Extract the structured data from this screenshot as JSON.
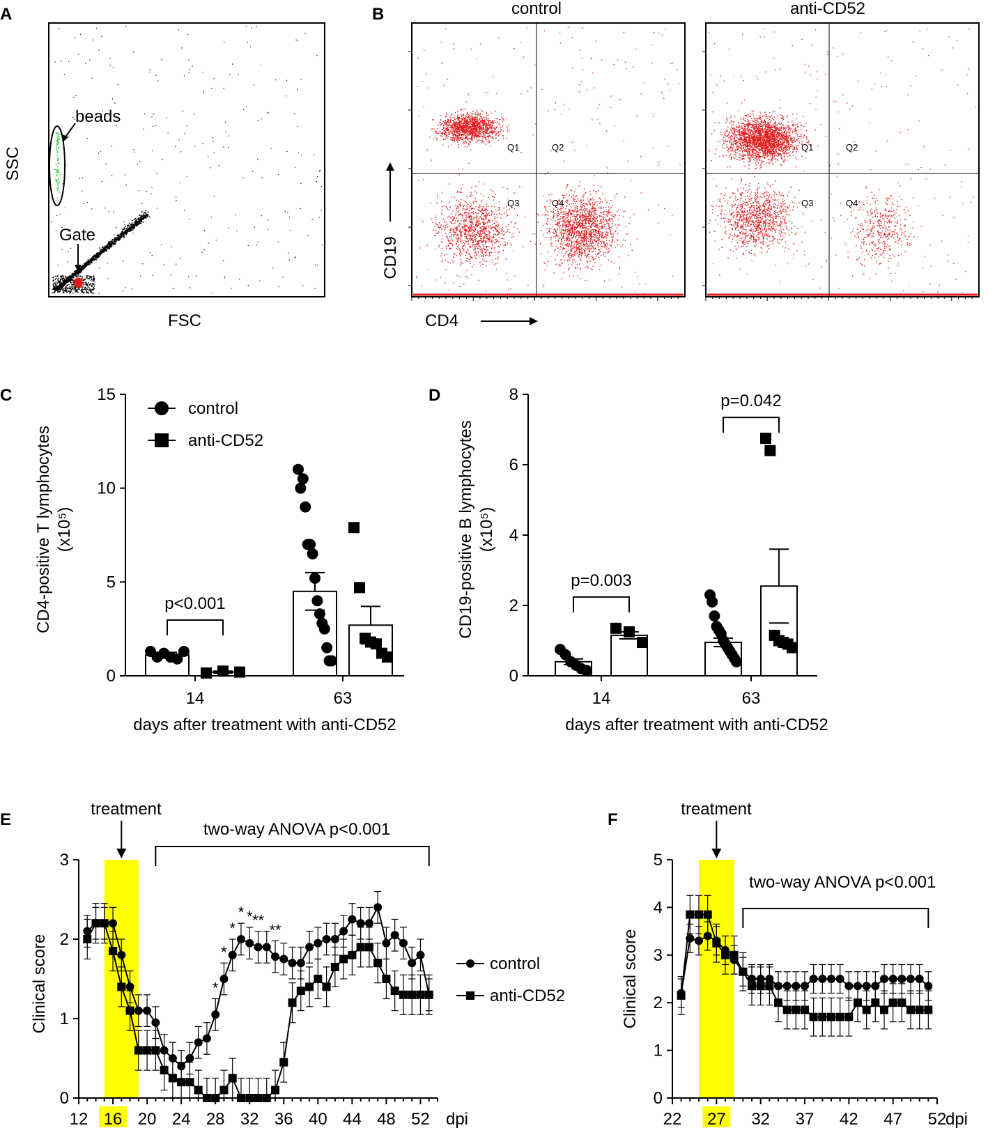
{
  "colors": {
    "ink": "#000000",
    "highlight": "#ffff00",
    "dots": "#e0191c",
    "beads": "#2ecc40"
  },
  "panels": {
    "a": {
      "letter": "A",
      "xlabel": "FSC",
      "ylabel": "SSC",
      "beads_label": "beads",
      "gate_label": "Gate"
    },
    "b": {
      "letter": "B",
      "title_left": "control",
      "title_right": "anti-CD52",
      "xlabel": "CD4",
      "ylabel": "CD19",
      "quadrants": [
        "Q1",
        "Q2",
        "Q3",
        "Q4"
      ]
    },
    "c": {
      "letter": "C"
    },
    "d": {
      "letter": "D"
    },
    "e": {
      "letter": "E"
    },
    "f": {
      "letter": "F"
    }
  },
  "chart_data": [
    {
      "id": "C",
      "type": "bar",
      "ylabel": "CD4-positive T lymphocytes",
      "ylabel_unit": "(x10⁵)",
      "xlabel": "days after treatment with anti-CD52",
      "categories": [
        "14",
        "63"
      ],
      "ylim": [
        0,
        15
      ],
      "yticks": [
        0,
        5,
        10,
        15
      ],
      "legend": [
        "control",
        "anti-CD52"
      ],
      "series": [
        {
          "name": "control",
          "marker": "circle",
          "means": [
            1.1,
            4.5
          ],
          "sem": [
            0.15,
            1.0
          ],
          "points": [
            [
              1.3,
              1.0,
              1.2,
              1.0,
              0.9,
              1.3
            ],
            [
              11.0,
              10.0,
              10.5,
              9.0,
              7.0,
              7.0,
              6.5,
              5.2,
              4.0,
              3.3,
              2.8,
              2.5,
              1.5,
              0.8,
              0.8
            ]
          ]
        },
        {
          "name": "anti-CD52",
          "marker": "square",
          "means": [
            0.2,
            2.7
          ],
          "sem": [
            0.05,
            1.0
          ],
          "points": [
            [
              0.15,
              0.25,
              0.2
            ],
            [
              7.9,
              4.7,
              2.0,
              1.8,
              1.7,
              1.2,
              1.0
            ]
          ]
        }
      ],
      "annotations": [
        {
          "text": "p<0.001",
          "category": "14"
        }
      ]
    },
    {
      "id": "D",
      "type": "bar",
      "ylabel": "CD19-positive B lymphocytes",
      "ylabel_unit": "(x10⁵)",
      "xlabel": "days after treatment with anti-CD52",
      "categories": [
        "14",
        "63"
      ],
      "ylim": [
        0,
        8
      ],
      "yticks": [
        0,
        2,
        4,
        6,
        8
      ],
      "series": [
        {
          "name": "control",
          "marker": "circle",
          "means": [
            0.4,
            0.95
          ],
          "sem": [
            0.08,
            0.12
          ],
          "points": [
            [
              0.75,
              0.6,
              0.4,
              0.3,
              0.2,
              0.15
            ],
            [
              2.3,
              2.1,
              1.7,
              1.4,
              1.3,
              1.2,
              1.0,
              0.9,
              0.8,
              0.7,
              0.6,
              0.5,
              0.4
            ]
          ]
        },
        {
          "name": "anti-CD52",
          "marker": "square",
          "means": [
            1.15,
            2.55
          ],
          "sem": [
            0.1,
            1.05
          ],
          "points": [
            [
              1.35,
              1.25,
              0.95
            ],
            [
              6.75,
              6.4,
              1.15,
              1.0,
              0.95,
              0.9,
              0.8
            ]
          ]
        }
      ],
      "annotations": [
        {
          "text": "p=0.003",
          "category": "14"
        },
        {
          "text": "p=0.042",
          "category": "63"
        }
      ]
    },
    {
      "id": "E",
      "type": "line",
      "ylabel": "Clinical score",
      "xlabel": "dpi",
      "xlim": [
        12,
        54
      ],
      "xticks": [
        12,
        16,
        20,
        24,
        28,
        32,
        36,
        40,
        44,
        48,
        52
      ],
      "highlight_tick": "16",
      "ylim": [
        0,
        3
      ],
      "yticks": [
        0,
        1,
        2,
        3
      ],
      "treatment_window": [
        15,
        19
      ],
      "treatment_label": "treatment",
      "stat_label": "two-way ANOVA p<0.001",
      "stat_range": [
        21,
        53
      ],
      "legend": [
        "control",
        "anti-CD52"
      ],
      "x": [
        13,
        14,
        15,
        16,
        17,
        18,
        19,
        20,
        21,
        22,
        23,
        24,
        25,
        26,
        27,
        28,
        29,
        30,
        31,
        32,
        33,
        34,
        35,
        36,
        37,
        38,
        39,
        40,
        41,
        42,
        43,
        44,
        45,
        46,
        47,
        48,
        49,
        50,
        51,
        52,
        53
      ],
      "series": [
        {
          "name": "control",
          "marker": "circle",
          "err": 0.2,
          "values": [
            2.1,
            2.2,
            2.2,
            2.2,
            1.8,
            1.4,
            1.1,
            1.1,
            0.95,
            0.6,
            0.5,
            0.4,
            0.5,
            0.7,
            0.75,
            1.05,
            1.5,
            1.8,
            2.0,
            1.95,
            1.9,
            1.9,
            1.78,
            1.75,
            1.7,
            1.7,
            1.9,
            1.95,
            2.0,
            2.0,
            2.1,
            2.25,
            2.2,
            2.2,
            2.4,
            1.95,
            2.05,
            1.95,
            1.7,
            1.8,
            1.3
          ]
        },
        {
          "name": "anti-CD52",
          "marker": "square",
          "err": 0.25,
          "values": [
            2.0,
            2.2,
            2.2,
            1.85,
            1.4,
            1.1,
            0.6,
            0.6,
            0.6,
            0.35,
            0.25,
            0.2,
            0.2,
            0.1,
            0.0,
            0.0,
            0.1,
            0.25,
            0.0,
            0.0,
            0.0,
            0.0,
            0.1,
            0.45,
            1.2,
            1.35,
            1.4,
            1.5,
            1.4,
            1.65,
            1.75,
            1.8,
            1.9,
            1.9,
            1.7,
            1.5,
            1.35,
            1.3,
            1.3,
            1.3,
            1.3
          ]
        }
      ],
      "significance": [
        {
          "x": 28,
          "text": "*"
        },
        {
          "x": 29,
          "text": "*"
        },
        {
          "x": 30,
          "text": "*"
        },
        {
          "x": 31,
          "text": "*"
        },
        {
          "x": 32,
          "text": "*"
        },
        {
          "x": 33,
          "text": "**"
        },
        {
          "x": 35,
          "text": "**"
        }
      ]
    },
    {
      "id": "F",
      "type": "line",
      "ylabel": "Clinical score",
      "xlabel": "dpi",
      "xlim": [
        22,
        52
      ],
      "xticks": [
        22,
        27,
        32,
        37,
        42,
        47,
        52
      ],
      "highlight_tick": "27",
      "ylim": [
        0,
        5
      ],
      "yticks": [
        0,
        1,
        2,
        3,
        4,
        5
      ],
      "treatment_window": [
        25,
        29
      ],
      "treatment_label": "treatment",
      "stat_label": "two-way ANOVA p<0.001",
      "stat_range": [
        30,
        51
      ],
      "x": [
        23,
        24,
        25,
        26,
        27,
        28,
        29,
        30,
        31,
        32,
        33,
        34,
        35,
        36,
        37,
        38,
        39,
        40,
        41,
        42,
        43,
        44,
        45,
        46,
        47,
        48,
        49,
        50,
        51
      ],
      "series": [
        {
          "name": "control",
          "marker": "circle",
          "err": 0.3,
          "values": [
            2.2,
            3.35,
            3.3,
            3.4,
            3.3,
            3.1,
            2.9,
            2.65,
            2.5,
            2.5,
            2.5,
            2.35,
            2.35,
            2.35,
            2.35,
            2.5,
            2.5,
            2.5,
            2.5,
            2.35,
            2.35,
            2.35,
            2.35,
            2.5,
            2.5,
            2.5,
            2.5,
            2.5,
            2.35
          ]
        },
        {
          "name": "anti-CD52",
          "marker": "square",
          "err": 0.4,
          "values": [
            2.15,
            3.85,
            3.85,
            3.85,
            3.25,
            3.0,
            3.0,
            2.65,
            2.35,
            2.35,
            2.35,
            2.0,
            1.85,
            1.85,
            1.85,
            1.7,
            1.7,
            1.7,
            1.7,
            1.7,
            2.0,
            1.85,
            2.0,
            1.85,
            2.0,
            2.0,
            1.85,
            1.85,
            1.85
          ]
        }
      ]
    }
  ]
}
